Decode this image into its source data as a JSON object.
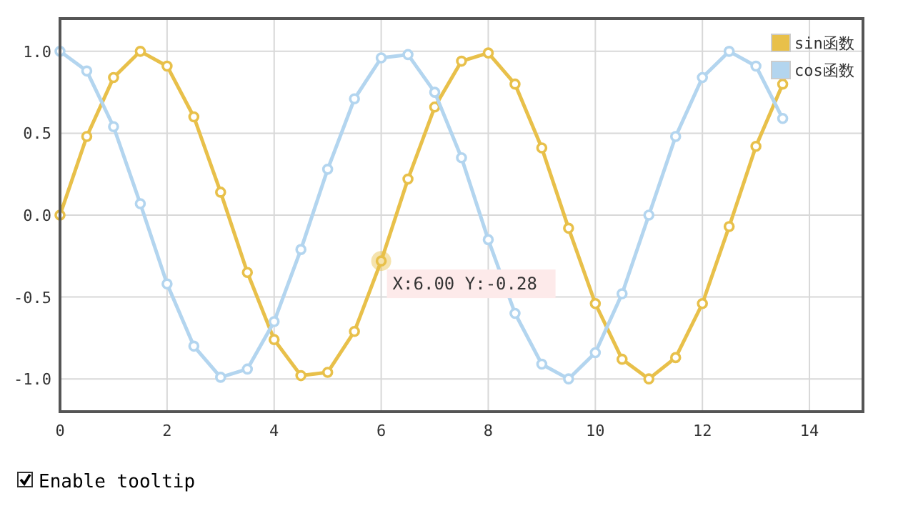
{
  "chart_data": {
    "type": "line",
    "x": [
      0,
      0.5,
      1,
      1.5,
      2,
      2.5,
      3,
      3.5,
      4,
      4.5,
      5,
      5.5,
      6,
      6.5,
      7,
      7.5,
      8,
      8.5,
      9,
      9.5,
      10,
      10.5,
      11,
      11.5,
      12,
      12.5,
      13,
      13.5
    ],
    "series": [
      {
        "name": "sin函数",
        "color": "#e8c04a",
        "values": [
          0,
          0.48,
          0.84,
          1.0,
          0.91,
          0.6,
          0.14,
          -0.35,
          -0.76,
          -0.98,
          -0.96,
          -0.71,
          -0.28,
          0.22,
          0.66,
          0.94,
          0.99,
          0.8,
          0.41,
          -0.08,
          -0.54,
          -0.88,
          -1.0,
          -0.87,
          -0.54,
          -0.07,
          0.42,
          0.8
        ]
      },
      {
        "name": "cos函数",
        "color": "#b3d5ef",
        "values": [
          1.0,
          0.88,
          0.54,
          0.07,
          -0.42,
          -0.8,
          -0.99,
          -0.94,
          -0.65,
          -0.21,
          0.28,
          0.71,
          0.96,
          0.98,
          0.75,
          0.35,
          -0.15,
          -0.6,
          -0.91,
          -1.0,
          -0.84,
          -0.48,
          0.0,
          0.48,
          0.84,
          1.0,
          0.91,
          0.59
        ]
      }
    ],
    "xlim": [
      0,
      15
    ],
    "xticks": [
      0,
      2,
      4,
      6,
      8,
      10,
      12,
      14
    ],
    "ylim": [
      -1.2,
      1.2
    ],
    "yticks": [
      {
        "value": -1,
        "label": "-1.0"
      },
      {
        "value": -0.5,
        "label": "-0.5"
      },
      {
        "value": 0,
        "label": "0.0"
      },
      {
        "value": 0.5,
        "label": "0.5"
      },
      {
        "value": 1,
        "label": "1.0"
      }
    ],
    "grid": true,
    "legend": "top right",
    "marker": "circle",
    "line_style": "solid",
    "annotations": [
      {
        "text": "X:6.00 Y:-0.28",
        "x": 6,
        "y": -0.28
      },
      "Enable tooltip"
    ]
  }
}
